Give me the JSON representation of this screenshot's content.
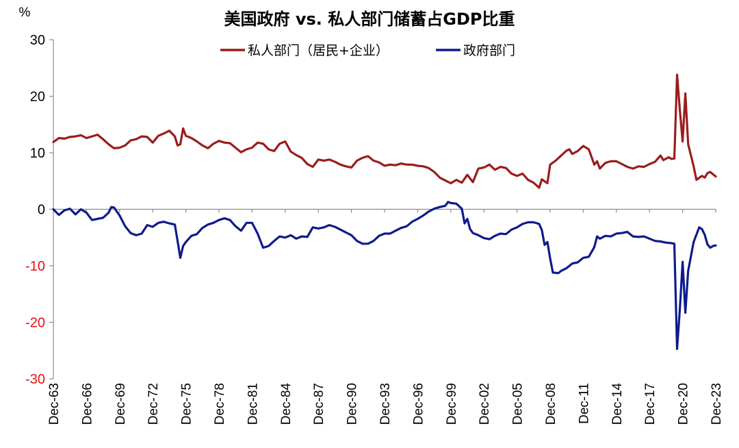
{
  "chart_data": {
    "type": "line",
    "title": "美国政府 vs. 私人部门储蓄占GDP比重",
    "ylabel": "%",
    "xlabel": "",
    "ylim": [
      -30,
      30
    ],
    "yticks": [
      30,
      20,
      10,
      0,
      -10,
      -20,
      -30
    ],
    "ytick_colors": {
      "positive": "#000000",
      "negative": "#e8110f"
    },
    "xlim": [
      1963.75,
      2023.75
    ],
    "xticks": [
      "Dec-63",
      "Dec-66",
      "Dec-69",
      "Dec-72",
      "Dec-75",
      "Dec-78",
      "Dec-81",
      "Dec-84",
      "Dec-87",
      "Dec-90",
      "Dec-93",
      "Dec-96",
      "Dec-99",
      "Dec-02",
      "Dec-05",
      "Dec-08",
      "Dec-11",
      "Dec-14",
      "Dec-17",
      "Dec-20",
      "Dec-23"
    ],
    "legend_position": "top-center",
    "grid": false,
    "series": [
      {
        "name": "私人部门（居民+企业）",
        "color": "#9b1c1c",
        "points": [
          [
            1963.75,
            11.9
          ],
          [
            1964.25,
            12.6
          ],
          [
            1964.75,
            12.5
          ],
          [
            1965.25,
            12.8
          ],
          [
            1965.75,
            12.9
          ],
          [
            1966.25,
            13.1
          ],
          [
            1966.75,
            12.6
          ],
          [
            1967.25,
            12.9
          ],
          [
            1967.75,
            13.2
          ],
          [
            1968.25,
            12.4
          ],
          [
            1968.75,
            11.5
          ],
          [
            1969.25,
            10.8
          ],
          [
            1969.75,
            10.9
          ],
          [
            1970.25,
            11.3
          ],
          [
            1970.75,
            12.2
          ],
          [
            1971.25,
            12.4
          ],
          [
            1971.75,
            12.9
          ],
          [
            1972.25,
            12.8
          ],
          [
            1972.75,
            11.8
          ],
          [
            1973.25,
            13.0
          ],
          [
            1973.75,
            13.4
          ],
          [
            1974.25,
            13.9
          ],
          [
            1974.75,
            12.9
          ],
          [
            1975.0,
            11.3
          ],
          [
            1975.25,
            11.5
          ],
          [
            1975.5,
            14.3
          ],
          [
            1975.75,
            13.0
          ],
          [
            1976.25,
            12.6
          ],
          [
            1976.75,
            12.0
          ],
          [
            1977.25,
            11.3
          ],
          [
            1977.75,
            10.8
          ],
          [
            1978.25,
            11.6
          ],
          [
            1978.75,
            12.1
          ],
          [
            1979.25,
            11.8
          ],
          [
            1979.75,
            11.7
          ],
          [
            1980.25,
            10.9
          ],
          [
            1980.75,
            10.1
          ],
          [
            1981.25,
            10.6
          ],
          [
            1981.75,
            10.9
          ],
          [
            1982.25,
            11.8
          ],
          [
            1982.75,
            11.6
          ],
          [
            1983.25,
            10.6
          ],
          [
            1983.75,
            10.3
          ],
          [
            1984.25,
            11.6
          ],
          [
            1984.75,
            12.0
          ],
          [
            1985.25,
            10.2
          ],
          [
            1985.75,
            9.6
          ],
          [
            1986.25,
            9.1
          ],
          [
            1986.75,
            8.0
          ],
          [
            1987.25,
            7.5
          ],
          [
            1987.75,
            8.8
          ],
          [
            1988.25,
            8.6
          ],
          [
            1988.75,
            8.8
          ],
          [
            1989.25,
            8.4
          ],
          [
            1989.75,
            7.9
          ],
          [
            1990.25,
            7.6
          ],
          [
            1990.75,
            7.4
          ],
          [
            1991.25,
            8.6
          ],
          [
            1991.75,
            9.1
          ],
          [
            1992.25,
            9.4
          ],
          [
            1992.75,
            8.6
          ],
          [
            1993.25,
            8.3
          ],
          [
            1993.75,
            7.7
          ],
          [
            1994.25,
            7.9
          ],
          [
            1994.75,
            7.8
          ],
          [
            1995.25,
            8.1
          ],
          [
            1995.75,
            7.9
          ],
          [
            1996.25,
            7.9
          ],
          [
            1996.75,
            7.7
          ],
          [
            1997.25,
            7.6
          ],
          [
            1997.75,
            7.3
          ],
          [
            1998.25,
            6.6
          ],
          [
            1998.75,
            5.6
          ],
          [
            1999.25,
            5.1
          ],
          [
            1999.75,
            4.6
          ],
          [
            2000.25,
            5.2
          ],
          [
            2000.75,
            4.7
          ],
          [
            2001.25,
            6.1
          ],
          [
            2001.75,
            4.8
          ],
          [
            2002.25,
            7.2
          ],
          [
            2002.75,
            7.4
          ],
          [
            2003.25,
            7.9
          ],
          [
            2003.75,
            7.0
          ],
          [
            2004.25,
            7.5
          ],
          [
            2004.75,
            7.3
          ],
          [
            2005.25,
            6.3
          ],
          [
            2005.75,
            5.9
          ],
          [
            2006.25,
            6.3
          ],
          [
            2006.75,
            5.2
          ],
          [
            2007.25,
            4.7
          ],
          [
            2007.75,
            3.8
          ],
          [
            2008.0,
            5.3
          ],
          [
            2008.5,
            4.6
          ],
          [
            2008.75,
            7.9
          ],
          [
            2009.25,
            8.6
          ],
          [
            2009.75,
            9.5
          ],
          [
            2010.25,
            10.4
          ],
          [
            2010.5,
            10.6
          ],
          [
            2010.75,
            9.8
          ],
          [
            2011.25,
            10.3
          ],
          [
            2011.75,
            11.2
          ],
          [
            2012.25,
            10.6
          ],
          [
            2012.75,
            7.9
          ],
          [
            2013.0,
            8.5
          ],
          [
            2013.25,
            7.2
          ],
          [
            2013.75,
            8.2
          ],
          [
            2014.25,
            8.5
          ],
          [
            2014.75,
            8.5
          ],
          [
            2015.25,
            8.0
          ],
          [
            2015.75,
            7.5
          ],
          [
            2016.25,
            7.2
          ],
          [
            2016.75,
            7.6
          ],
          [
            2017.25,
            7.5
          ],
          [
            2017.75,
            8.0
          ],
          [
            2018.25,
            8.4
          ],
          [
            2018.75,
            9.5
          ],
          [
            2019.0,
            8.7
          ],
          [
            2019.5,
            9.2
          ],
          [
            2019.75,
            8.9
          ],
          [
            2020.0,
            9.0
          ],
          [
            2020.25,
            23.8
          ],
          [
            2020.5,
            17.5
          ],
          [
            2020.75,
            12.0
          ],
          [
            2021.0,
            20.5
          ],
          [
            2021.25,
            11.5
          ],
          [
            2021.75,
            7.6
          ],
          [
            2022.0,
            5.2
          ],
          [
            2022.5,
            5.9
          ],
          [
            2022.75,
            5.6
          ],
          [
            2023.0,
            6.4
          ],
          [
            2023.25,
            6.6
          ],
          [
            2023.75,
            5.8
          ]
        ]
      },
      {
        "name": "政府部门",
        "color": "#0d1b8c",
        "points": [
          [
            1963.75,
            0.0
          ],
          [
            1964.25,
            -1.0
          ],
          [
            1964.75,
            -0.2
          ],
          [
            1965.25,
            0.1
          ],
          [
            1965.75,
            -0.9
          ],
          [
            1966.25,
            0.0
          ],
          [
            1966.75,
            -0.6
          ],
          [
            1967.25,
            -1.9
          ],
          [
            1967.75,
            -1.7
          ],
          [
            1968.25,
            -1.5
          ],
          [
            1968.75,
            -0.6
          ],
          [
            1969.0,
            0.4
          ],
          [
            1969.25,
            0.3
          ],
          [
            1969.75,
            -1.1
          ],
          [
            1970.25,
            -3.0
          ],
          [
            1970.75,
            -4.2
          ],
          [
            1971.25,
            -4.6
          ],
          [
            1971.75,
            -4.3
          ],
          [
            1972.25,
            -2.8
          ],
          [
            1972.75,
            -3.1
          ],
          [
            1973.25,
            -2.4
          ],
          [
            1973.75,
            -2.2
          ],
          [
            1974.25,
            -2.5
          ],
          [
            1974.75,
            -2.7
          ],
          [
            1975.0,
            -5.6
          ],
          [
            1975.25,
            -8.6
          ],
          [
            1975.5,
            -6.5
          ],
          [
            1975.75,
            -5.8
          ],
          [
            1976.25,
            -4.7
          ],
          [
            1976.75,
            -4.4
          ],
          [
            1977.25,
            -3.3
          ],
          [
            1977.75,
            -2.7
          ],
          [
            1978.25,
            -2.4
          ],
          [
            1978.75,
            -1.9
          ],
          [
            1979.25,
            -1.6
          ],
          [
            1979.75,
            -1.9
          ],
          [
            1980.25,
            -3.0
          ],
          [
            1980.75,
            -3.8
          ],
          [
            1981.25,
            -2.4
          ],
          [
            1981.75,
            -2.4
          ],
          [
            1982.25,
            -4.3
          ],
          [
            1982.75,
            -6.8
          ],
          [
            1983.25,
            -6.5
          ],
          [
            1983.75,
            -5.6
          ],
          [
            1984.25,
            -4.8
          ],
          [
            1984.75,
            -5.0
          ],
          [
            1985.25,
            -4.6
          ],
          [
            1985.75,
            -5.2
          ],
          [
            1986.25,
            -4.8
          ],
          [
            1986.75,
            -4.9
          ],
          [
            1987.25,
            -3.2
          ],
          [
            1987.75,
            -3.4
          ],
          [
            1988.25,
            -3.2
          ],
          [
            1988.75,
            -2.8
          ],
          [
            1989.25,
            -3.1
          ],
          [
            1989.75,
            -3.6
          ],
          [
            1990.25,
            -4.1
          ],
          [
            1990.75,
            -4.6
          ],
          [
            1991.25,
            -5.6
          ],
          [
            1991.75,
            -6.1
          ],
          [
            1992.25,
            -6.1
          ],
          [
            1992.75,
            -5.6
          ],
          [
            1993.25,
            -4.7
          ],
          [
            1993.75,
            -4.3
          ],
          [
            1994.25,
            -4.3
          ],
          [
            1994.75,
            -3.8
          ],
          [
            1995.25,
            -3.3
          ],
          [
            1995.75,
            -3.0
          ],
          [
            1996.25,
            -2.2
          ],
          [
            1996.75,
            -1.7
          ],
          [
            1997.25,
            -1.1
          ],
          [
            1997.75,
            -0.4
          ],
          [
            1998.25,
            0.1
          ],
          [
            1998.75,
            0.4
          ],
          [
            1999.25,
            0.6
          ],
          [
            1999.5,
            1.3
          ],
          [
            1999.75,
            1.1
          ],
          [
            2000.25,
            1.0
          ],
          [
            2000.75,
            0.1
          ],
          [
            2001.0,
            -2.5
          ],
          [
            2001.25,
            -1.7
          ],
          [
            2001.5,
            -3.5
          ],
          [
            2001.75,
            -4.2
          ],
          [
            2002.25,
            -4.6
          ],
          [
            2002.75,
            -5.1
          ],
          [
            2003.25,
            -5.3
          ],
          [
            2003.75,
            -4.7
          ],
          [
            2004.25,
            -4.3
          ],
          [
            2004.75,
            -4.4
          ],
          [
            2005.25,
            -3.6
          ],
          [
            2005.75,
            -3.2
          ],
          [
            2006.25,
            -2.6
          ],
          [
            2006.75,
            -2.3
          ],
          [
            2007.25,
            -2.3
          ],
          [
            2007.75,
            -2.6
          ],
          [
            2008.0,
            -3.7
          ],
          [
            2008.25,
            -6.3
          ],
          [
            2008.5,
            -5.8
          ],
          [
            2008.75,
            -8.7
          ],
          [
            2009.0,
            -11.2
          ],
          [
            2009.5,
            -11.3
          ],
          [
            2009.75,
            -10.9
          ],
          [
            2010.25,
            -10.4
          ],
          [
            2010.75,
            -9.6
          ],
          [
            2011.25,
            -9.4
          ],
          [
            2011.75,
            -8.6
          ],
          [
            2012.25,
            -8.4
          ],
          [
            2012.75,
            -6.7
          ],
          [
            2013.0,
            -4.8
          ],
          [
            2013.25,
            -5.2
          ],
          [
            2013.75,
            -4.7
          ],
          [
            2014.25,
            -4.8
          ],
          [
            2014.75,
            -4.3
          ],
          [
            2015.25,
            -4.2
          ],
          [
            2015.75,
            -4.0
          ],
          [
            2016.25,
            -4.8
          ],
          [
            2016.75,
            -4.9
          ],
          [
            2017.25,
            -4.8
          ],
          [
            2017.75,
            -5.2
          ],
          [
            2018.25,
            -5.6
          ],
          [
            2018.75,
            -5.7
          ],
          [
            2019.25,
            -5.9
          ],
          [
            2019.75,
            -6.0
          ],
          [
            2020.0,
            -6.1
          ],
          [
            2020.25,
            -24.7
          ],
          [
            2020.5,
            -17.6
          ],
          [
            2020.75,
            -9.3
          ],
          [
            2021.0,
            -18.3
          ],
          [
            2021.25,
            -10.9
          ],
          [
            2021.75,
            -5.8
          ],
          [
            2022.25,
            -3.2
          ],
          [
            2022.5,
            -3.5
          ],
          [
            2022.75,
            -4.5
          ],
          [
            2023.0,
            -6.2
          ],
          [
            2023.25,
            -6.8
          ],
          [
            2023.5,
            -6.5
          ],
          [
            2023.75,
            -6.4
          ]
        ]
      }
    ]
  }
}
